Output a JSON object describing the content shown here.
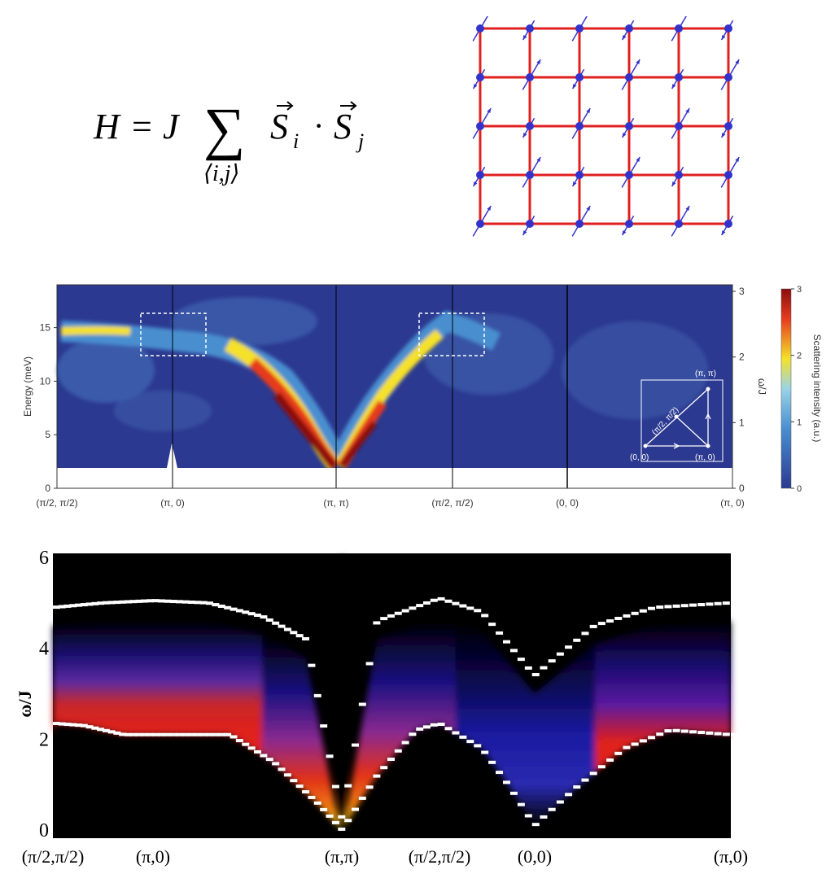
{
  "formula": {
    "lhs": "H",
    "eq": "=",
    "coef": "J",
    "sum_sub": "⟨i,j⟩",
    "s": "S",
    "sub_i": "i",
    "dot": "·",
    "sub_j": "j"
  },
  "lattice": {
    "rows": 5,
    "cols": 6,
    "bond_color": "#e02020",
    "site_color": "#3333cc",
    "spin_color": "#3333cc"
  },
  "chart_data": [
    {
      "type": "heatmap",
      "ylabel": "Energy (meV)",
      "ylim": [
        0,
        19
      ],
      "y_ticks": [
        "0",
        "5",
        "10",
        "15"
      ],
      "y_tick_values": [
        0,
        5,
        10,
        15
      ],
      "y2label": "ω/J",
      "y2lim": [
        0,
        3.1
      ],
      "y2_ticks": [
        "0",
        "1",
        "2",
        "3"
      ],
      "y2_tick_values": [
        0,
        1,
        2,
        3
      ],
      "x_ticks": [
        "(π/2, π/2)",
        "(π, 0)",
        "(π, π)",
        "(π/2, π/2)",
        "(0, 0)",
        "(π, 0)"
      ],
      "x_tick_positions": [
        0,
        1,
        2.45,
        3.35,
        4.5,
        5.5
      ],
      "colorbar": {
        "label": "Scattering intensity (a.u.)",
        "ticks": [
          "0",
          "1",
          "2",
          "3"
        ],
        "tick_values": [
          0,
          1,
          2,
          3
        ],
        "range": [
          0,
          3
        ]
      },
      "inset_labels": [
        "(π, π)",
        "(π/2, π/2)",
        "(0, 0)",
        "(π, 0)"
      ],
      "colors": [
        "#2b3990",
        "#4a8fd0",
        "#f5e12a",
        "#e63b1f",
        "#8b0d0d"
      ]
    },
    {
      "type": "heatmap",
      "ylabel": "ω/J",
      "ylim": [
        0,
        6
      ],
      "y_ticks": [
        "0",
        "2",
        "4",
        "6"
      ],
      "y_tick_values": [
        0,
        2,
        4,
        6
      ],
      "x_ticks": [
        "(π/2,π/2)",
        "(π,0)",
        "(π,π)",
        "(π/2,π/2)",
        "(0,0)",
        "(π,0)"
      ],
      "x_tick_positions": [
        0,
        1,
        2.73,
        3.48,
        4.2,
        5.5
      ],
      "upper_edge": {
        "x": [
          0,
          0.5,
          1,
          1.5,
          2,
          2.4,
          2.73,
          3.0,
          3.48,
          3.8,
          4.2,
          4.6,
          5.0,
          5.5
        ],
        "y": [
          4.9,
          5.0,
          5.05,
          5.0,
          4.7,
          4.2,
          0.2,
          4.6,
          5.1,
          4.8,
          3.4,
          4.5,
          4.9,
          5.0
        ]
      },
      "lower_edge": {
        "x": [
          0,
          0.3,
          0.7,
          1.0,
          1.4,
          1.7,
          2.1,
          2.5,
          2.73,
          3.0,
          3.3,
          3.48,
          3.8,
          4.0,
          4.2,
          4.5,
          4.8,
          5.1,
          5.5
        ],
        "y": [
          2.35,
          2.3,
          2.1,
          2.1,
          2.1,
          2.1,
          1.5,
          0.6,
          0.0,
          1.2,
          2.2,
          2.35,
          1.8,
          1.0,
          0.1,
          1.0,
          1.8,
          2.2,
          2.1
        ]
      }
    }
  ]
}
